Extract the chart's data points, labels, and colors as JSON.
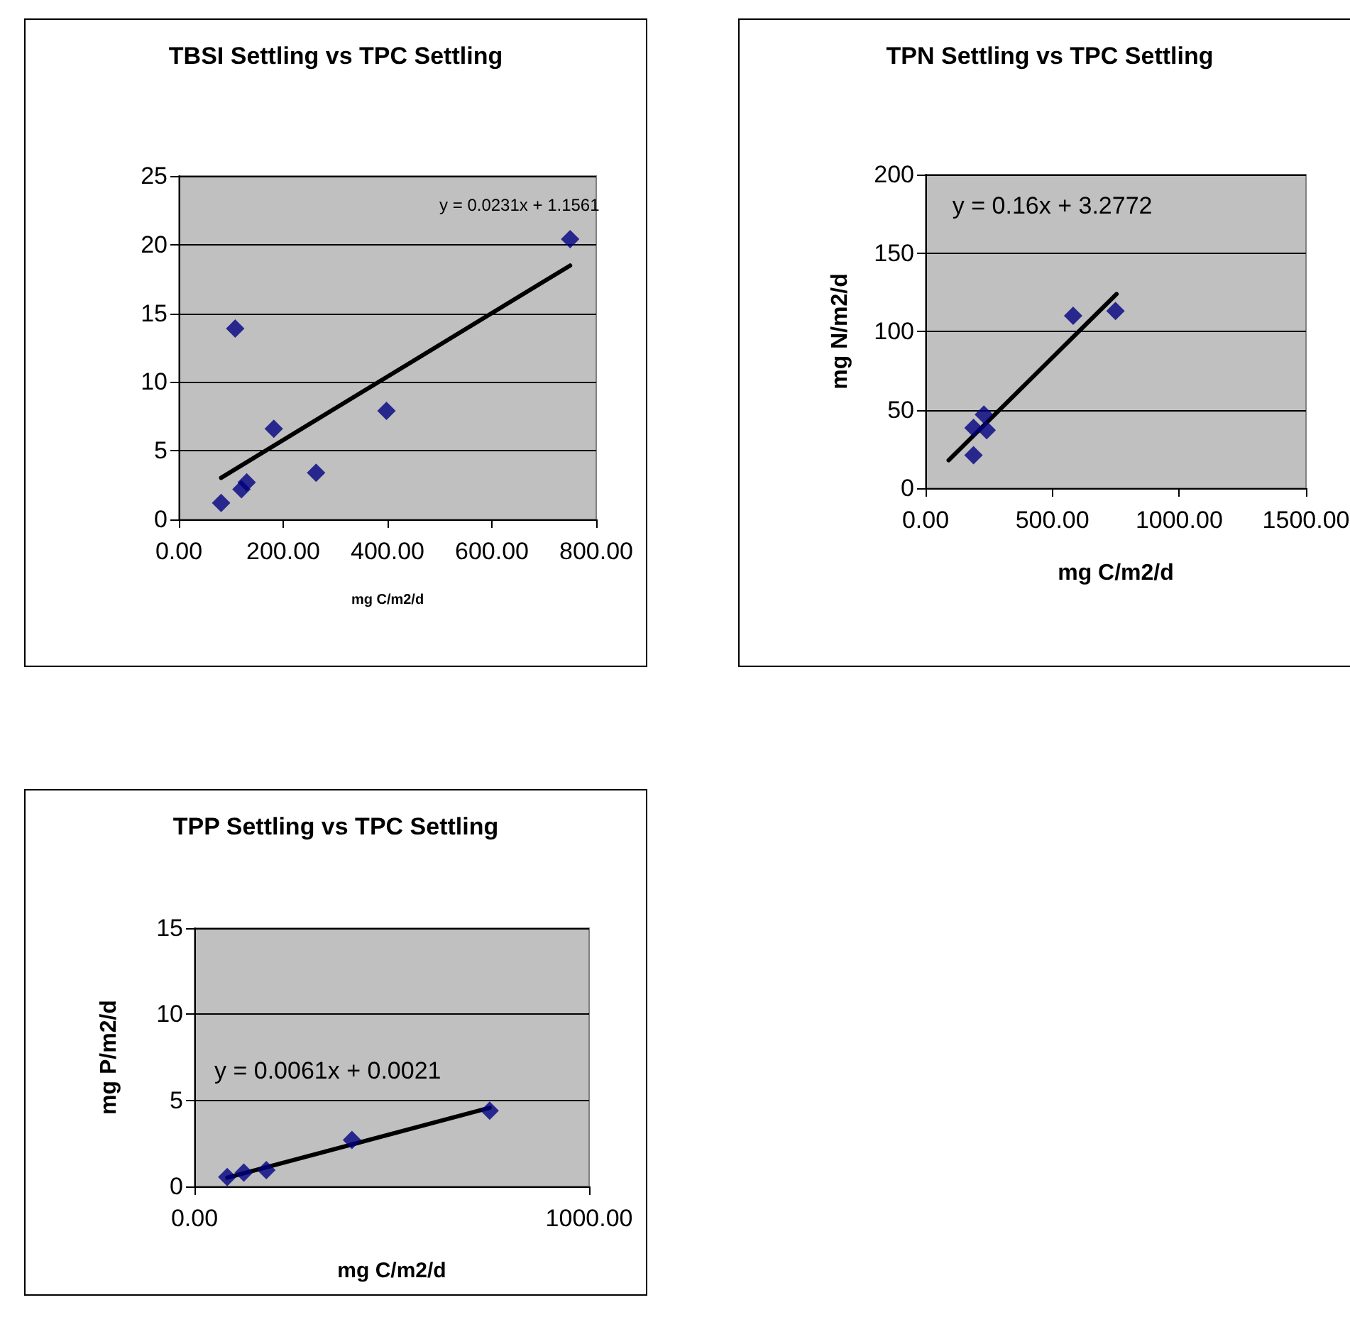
{
  "chart_data": [
    {
      "type": "scatter",
      "title": "TBSI Settling vs TPC Settling",
      "xlabel": "mg C/m2/d",
      "annotations": [
        "y = 0.0231x + 1.1561"
      ],
      "marker": "diamond",
      "grid": "y",
      "xlim": [
        0,
        800
      ],
      "xticks": [
        {
          "value": 0,
          "label": "0.00"
        },
        {
          "value": 200,
          "label": "200.00"
        },
        {
          "value": 400,
          "label": "400.00"
        },
        {
          "value": 600,
          "label": "600.00"
        },
        {
          "value": 800,
          "label": "800.00"
        }
      ],
      "ylim": [
        0,
        25
      ],
      "yticks": [
        0,
        5,
        10,
        15,
        20,
        25
      ],
      "series": [
        {
          "color": "#000080",
          "x": [
            81,
            108,
            120,
            130,
            182,
            263,
            398,
            750
          ],
          "values": [
            1.2,
            13.9,
            2.2,
            2.7,
            6.6,
            3.4,
            7.9,
            20.4
          ]
        },
        {
          "type": "line",
          "color": "#000000",
          "marker": "none",
          "x": [
            81,
            750
          ],
          "values": [
            3.03,
            18.48
          ]
        }
      ]
    },
    {
      "type": "scatter",
      "title": "TPN Settling vs TPC Settling",
      "xlabel": "mg C/m2/d",
      "ylabel": "mg N/m2/d",
      "annotations": [
        "y = 0.16x + 3.2772"
      ],
      "marker": "diamond",
      "grid": "y",
      "xlim": [
        0,
        1500
      ],
      "xticks": [
        {
          "value": 0,
          "label": "0.00"
        },
        {
          "value": 500,
          "label": "500.00"
        },
        {
          "value": 1000,
          "label": "1000.00"
        },
        {
          "value": 1500,
          "label": "1500.00"
        }
      ],
      "ylim": [
        0,
        200
      ],
      "yticks": [
        0,
        50,
        100,
        150,
        200
      ],
      "series": [
        {
          "color": "#000080",
          "x": [
            189,
            189,
            230,
            241,
            582,
            749
          ],
          "values": [
            21,
            38.5,
            47,
            37,
            110,
            113
          ]
        },
        {
          "type": "line",
          "color": "#000000",
          "marker": "none",
          "x": [
            91,
            753
          ],
          "values": [
            17.8,
            123.8
          ]
        }
      ]
    },
    {
      "type": "scatter",
      "title": "TPP Settling vs TPC Settling",
      "xlabel": "mg C/m2/d",
      "ylabel": "mg P/m2/d",
      "annotations": [
        "y = 0.0061x + 0.0021"
      ],
      "marker": "diamond",
      "grid": "y",
      "xlim": [
        0,
        1000
      ],
      "xticks": [
        {
          "value": 0,
          "label": "0.00"
        },
        {
          "value": 1000,
          "label": "1000.00"
        }
      ],
      "ylim": [
        0,
        15
      ],
      "yticks": [
        0,
        5,
        10,
        15
      ],
      "series": [
        {
          "color": "#000080",
          "x": [
            83,
            125,
            182,
            399,
            748
          ],
          "values": [
            0.55,
            0.8,
            0.95,
            2.7,
            4.4
          ]
        },
        {
          "type": "line",
          "color": "#000000",
          "marker": "none",
          "x": [
            83,
            748
          ],
          "values": [
            0.51,
            4.57
          ]
        }
      ]
    }
  ]
}
